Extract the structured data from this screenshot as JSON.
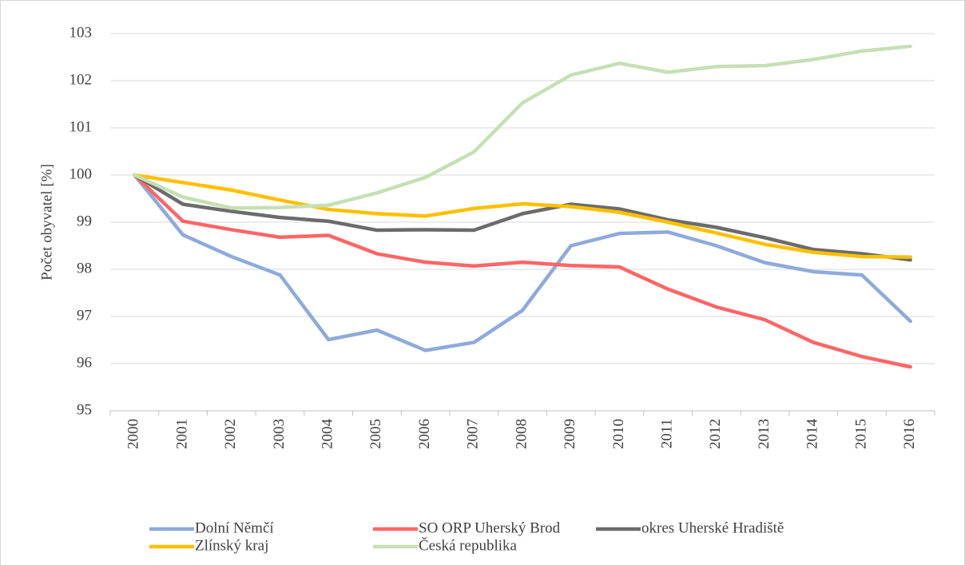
{
  "chart_data": {
    "type": "line",
    "y_label": "Počet obyvatel [%]",
    "categories": [
      "2000",
      "2001",
      "2002",
      "2003",
      "2004",
      "2005",
      "2006",
      "2007",
      "2008",
      "2009",
      "2010",
      "2011",
      "2012",
      "2013",
      "2014",
      "2015",
      "2016"
    ],
    "ylim": [
      95,
      103
    ],
    "yticks": [
      95,
      96,
      97,
      98,
      99,
      100,
      101,
      102,
      103
    ],
    "grid": true,
    "series": [
      {
        "name": "Dolní Němčí",
        "color": "#8eaadb",
        "values": [
          100,
          98.73,
          98.27,
          97.88,
          96.51,
          96.71,
          96.28,
          96.45,
          97.13,
          98.5,
          98.76,
          98.79,
          98.5,
          98.14,
          97.95,
          97.88,
          96.9
        ]
      },
      {
        "name": "SO ORP Uherský Brod",
        "color": "#ff6666",
        "values": [
          100,
          99.02,
          98.84,
          98.68,
          98.72,
          98.33,
          98.15,
          98.07,
          98.15,
          98.08,
          98.05,
          97.58,
          97.2,
          96.93,
          96.45,
          96.15,
          95.93
        ]
      },
      {
        "name": "okres Uherské Hradiště",
        "color": "#6b6b6b",
        "values": [
          100,
          99.38,
          99.23,
          99.1,
          99.02,
          98.83,
          98.84,
          98.83,
          99.18,
          99.38,
          99.28,
          99.05,
          98.89,
          98.67,
          98.42,
          98.33,
          98.2
        ]
      },
      {
        "name": "Zlínský kraj",
        "color": "#ffc000",
        "values": [
          100,
          99.84,
          99.68,
          99.47,
          99.27,
          99.18,
          99.13,
          99.29,
          99.39,
          99.33,
          99.21,
          99.0,
          98.77,
          98.53,
          98.36,
          98.27,
          98.26
        ]
      },
      {
        "name": "Česká republika",
        "color": "#c5e0b4",
        "values": [
          100,
          99.53,
          99.3,
          99.31,
          99.36,
          99.62,
          99.95,
          100.49,
          101.53,
          102.12,
          102.37,
          102.18,
          102.3,
          102.32,
          102.45,
          102.63,
          102.73
        ]
      }
    ]
  }
}
